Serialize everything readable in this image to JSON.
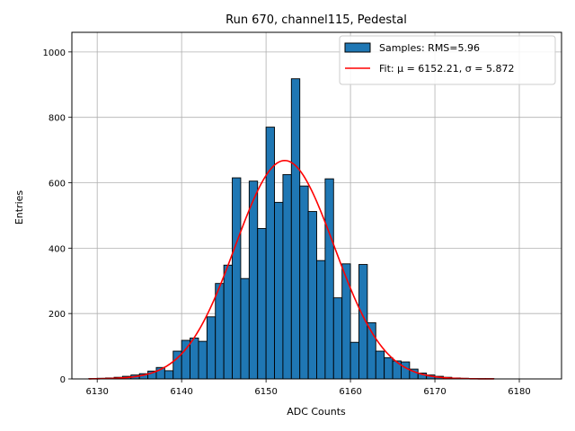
{
  "chart_data": {
    "type": "bar",
    "title": "Run 670, channel115, Pedestal",
    "xlabel": "ADC Counts",
    "ylabel": "Entries",
    "xlim": [
      6127,
      6185
    ],
    "ylim": [
      0,
      1060
    ],
    "xticks": [
      6130,
      6140,
      6150,
      6160,
      6170,
      6180
    ],
    "yticks": [
      0,
      200,
      400,
      600,
      800,
      1000
    ],
    "grid": true,
    "legend_position": "top-right",
    "histogram": {
      "name": "Samples: RMS=5.96",
      "color": "#1f77b4",
      "edgecolor": "#000000",
      "bin_width": 1,
      "bins_start": [
        6129,
        6130,
        6131,
        6132,
        6133,
        6134,
        6135,
        6136,
        6137,
        6138,
        6139,
        6140,
        6141,
        6142,
        6143,
        6144,
        6145,
        6146,
        6147,
        6148,
        6149,
        6150,
        6151,
        6152,
        6153,
        6154,
        6155,
        6156,
        6157,
        6158,
        6159,
        6160,
        6161,
        6162,
        6163,
        6164,
        6165,
        6166,
        6167,
        6168,
        6169,
        6170,
        6171,
        6172,
        6173,
        6174,
        6175,
        6176
      ],
      "values": [
        1,
        2,
        3,
        5,
        8,
        12,
        16,
        24,
        35,
        25,
        85,
        118,
        125,
        115,
        190,
        292,
        348,
        615,
        307,
        605,
        460,
        770,
        540,
        625,
        918,
        590,
        512,
        362,
        612,
        248,
        352,
        112,
        350,
        172,
        85,
        65,
        55,
        52,
        30,
        18,
        12,
        8,
        5,
        3,
        2,
        1,
        1,
        1
      ]
    },
    "fit": {
      "name": "Fit: μ = 6152.21, σ = 5.872",
      "color": "#ff0000",
      "mu": 6152.21,
      "sigma": 5.872,
      "amplitude": 668,
      "x_range": [
        6129,
        6177
      ]
    }
  }
}
